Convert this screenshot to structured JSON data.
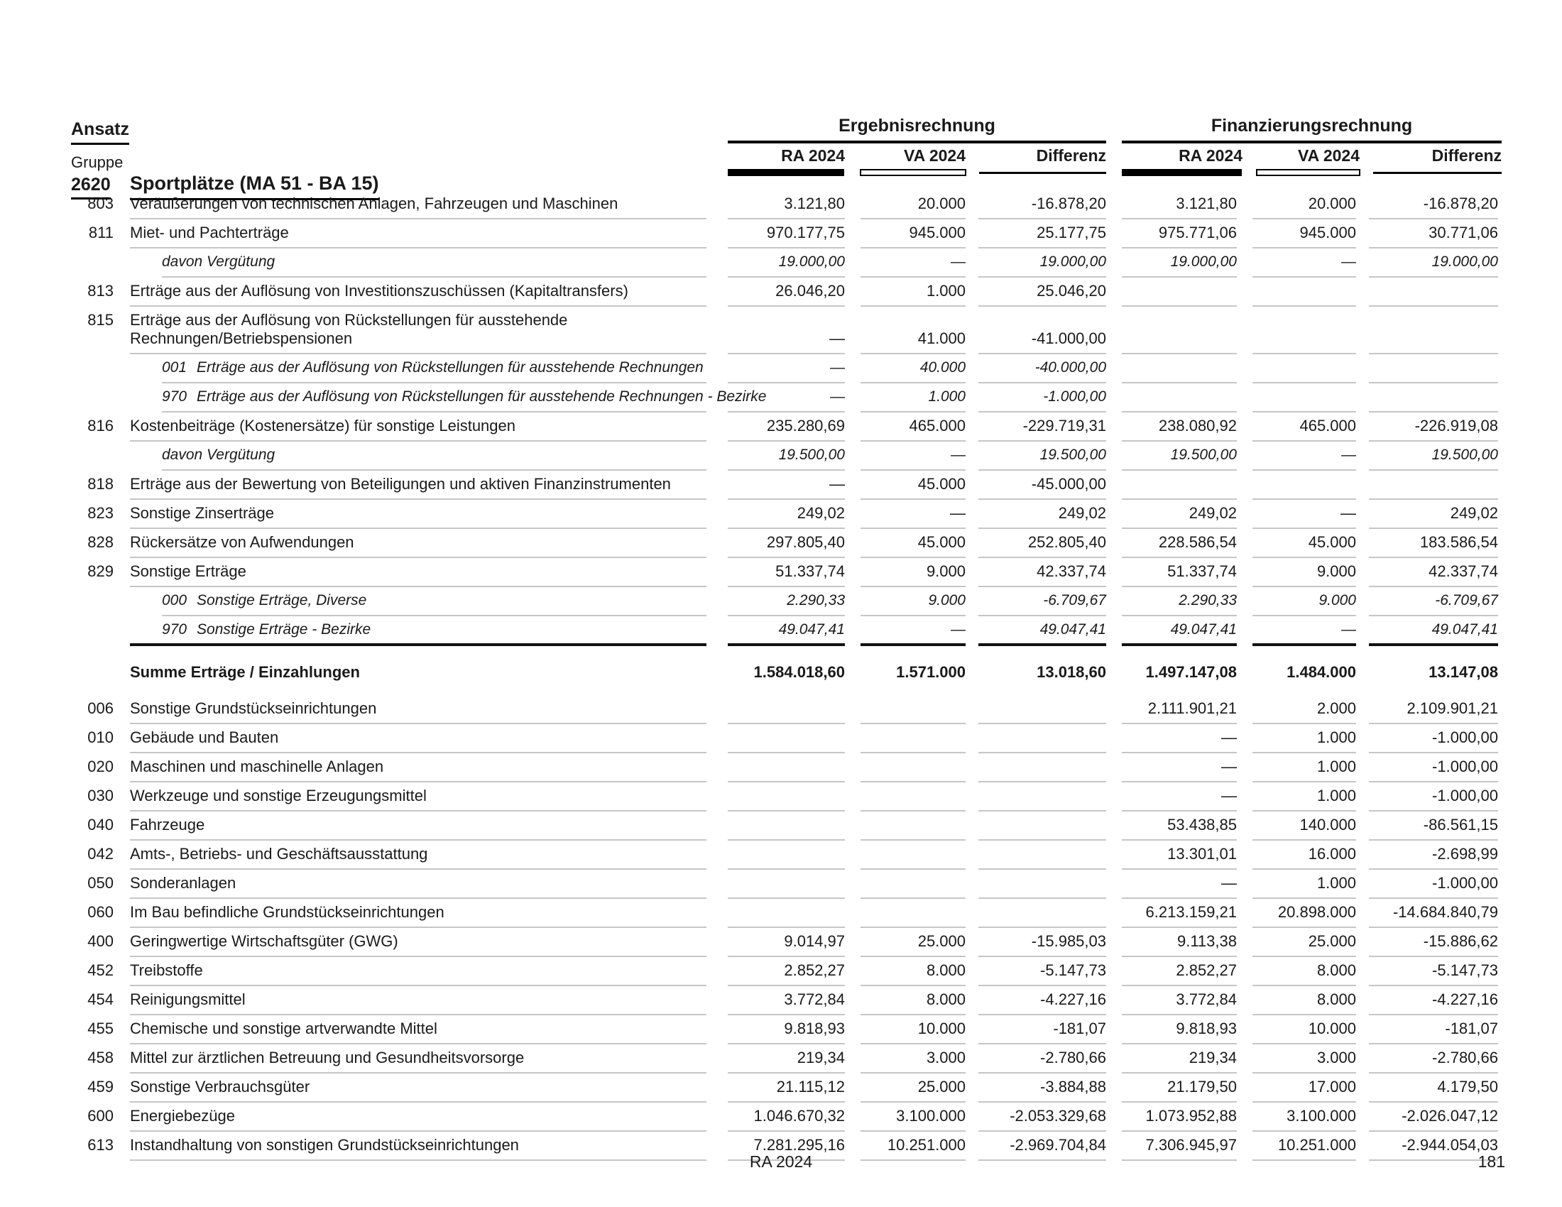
{
  "header": {
    "ansatz": "Ansatz",
    "gruppe_label": "Gruppe",
    "gruppe_code": "2620",
    "gruppe_title": "Sportplätze (MA 51 - BA 15)"
  },
  "columns": {
    "groups": [
      {
        "title": "Ergebnisrechnung",
        "sub": [
          "RA 2024",
          "VA 2024",
          "Differenz"
        ]
      },
      {
        "title": "Finanzierungsrechnung",
        "sub": [
          "RA 2024",
          "VA 2024",
          "Differenz"
        ]
      }
    ],
    "legend": {
      "ra": "solid-black-bar",
      "va": "hollow-bar",
      "differenz": "thin-line"
    }
  },
  "rows": [
    {
      "type": "main",
      "code": "803",
      "label": "Veräußerungen von technischen Anlagen, Fahrzeugen und Maschinen",
      "values": [
        "3.121,80",
        "20.000",
        "-16.878,20",
        "3.121,80",
        "20.000",
        "-16.878,20"
      ]
    },
    {
      "type": "main",
      "code": "811",
      "label": "Miet- und Pachterträge",
      "values": [
        "970.177,75",
        "945.000",
        "25.177,75",
        "975.771,06",
        "945.000",
        "30.771,06"
      ]
    },
    {
      "type": "sub",
      "subcode": "",
      "label": "davon Vergütung",
      "values": [
        "19.000,00",
        "—",
        "19.000,00",
        "19.000,00",
        "—",
        "19.000,00"
      ]
    },
    {
      "type": "main",
      "code": "813",
      "label": "Erträge aus der Auflösung von Investitionszuschüssen (Kapitaltransfers)",
      "values": [
        "26.046,20",
        "1.000",
        "25.046,20",
        "",
        "",
        ""
      ]
    },
    {
      "type": "main",
      "code": "815",
      "label": "Erträge aus der Auflösung von Rückstellungen für ausstehende",
      "label2": "Rechnungen/Betriebspensionen",
      "values": [
        "—",
        "41.000",
        "-41.000,00",
        "",
        "",
        ""
      ]
    },
    {
      "type": "sub",
      "subcode": "001",
      "label": "Erträge aus der Auflösung von Rückstellungen für ausstehende Rechnungen",
      "values": [
        "—",
        "40.000",
        "-40.000,00",
        "",
        "",
        ""
      ]
    },
    {
      "type": "sub",
      "subcode": "970",
      "label": "Erträge aus der Auflösung von Rückstellungen für ausstehende Rechnungen - Bezirke",
      "values": [
        "—",
        "1.000",
        "-1.000,00",
        "",
        "",
        ""
      ]
    },
    {
      "type": "main",
      "code": "816",
      "label": "Kostenbeiträge (Kostenersätze) für sonstige Leistungen",
      "values": [
        "235.280,69",
        "465.000",
        "-229.719,31",
        "238.080,92",
        "465.000",
        "-226.919,08"
      ]
    },
    {
      "type": "sub",
      "subcode": "",
      "label": "davon Vergütung",
      "values": [
        "19.500,00",
        "—",
        "19.500,00",
        "19.500,00",
        "—",
        "19.500,00"
      ]
    },
    {
      "type": "main",
      "code": "818",
      "label": "Erträge aus der Bewertung von Beteiligungen und aktiven Finanzinstrumenten",
      "values": [
        "—",
        "45.000",
        "-45.000,00",
        "",
        "",
        ""
      ]
    },
    {
      "type": "main",
      "code": "823",
      "label": "Sonstige Zinserträge",
      "values": [
        "249,02",
        "—",
        "249,02",
        "249,02",
        "—",
        "249,02"
      ]
    },
    {
      "type": "main",
      "code": "828",
      "label": "Rückersätze von Aufwendungen",
      "values": [
        "297.805,40",
        "45.000",
        "252.805,40",
        "228.586,54",
        "45.000",
        "183.586,54"
      ]
    },
    {
      "type": "main",
      "code": "829",
      "label": "Sonstige Erträge",
      "values": [
        "51.337,74",
        "9.000",
        "42.337,74",
        "51.337,74",
        "9.000",
        "42.337,74"
      ]
    },
    {
      "type": "sub",
      "subcode": "000",
      "label": "Sonstige Erträge, Diverse",
      "values": [
        "2.290,33",
        "9.000",
        "-6.709,67",
        "2.290,33",
        "9.000",
        "-6.709,67"
      ]
    },
    {
      "type": "sub",
      "subcode": "970",
      "label": "Sonstige Erträge - Bezirke",
      "sep": true,
      "values": [
        "49.047,41",
        "—",
        "49.047,41",
        "49.047,41",
        "—",
        "49.047,41"
      ]
    },
    {
      "type": "total",
      "code": "",
      "label": "Summe Erträge / Einzahlungen",
      "values": [
        "1.584.018,60",
        "1.571.000",
        "13.018,60",
        "1.497.147,08",
        "1.484.000",
        "13.147,08"
      ]
    },
    {
      "type": "main",
      "code": "006",
      "label": "Sonstige Grundstückseinrichtungen",
      "values": [
        "",
        "",
        "",
        "2.111.901,21",
        "2.000",
        "2.109.901,21"
      ]
    },
    {
      "type": "main",
      "code": "010",
      "label": "Gebäude und Bauten",
      "values": [
        "",
        "",
        "",
        "—",
        "1.000",
        "-1.000,00"
      ]
    },
    {
      "type": "main",
      "code": "020",
      "label": "Maschinen und maschinelle Anlagen",
      "values": [
        "",
        "",
        "",
        "—",
        "1.000",
        "-1.000,00"
      ]
    },
    {
      "type": "main",
      "code": "030",
      "label": "Werkzeuge und sonstige Erzeugungsmittel",
      "values": [
        "",
        "",
        "",
        "—",
        "1.000",
        "-1.000,00"
      ]
    },
    {
      "type": "main",
      "code": "040",
      "label": "Fahrzeuge",
      "values": [
        "",
        "",
        "",
        "53.438,85",
        "140.000",
        "-86.561,15"
      ]
    },
    {
      "type": "main",
      "code": "042",
      "label": "Amts-, Betriebs- und Geschäftsausstattung",
      "values": [
        "",
        "",
        "",
        "13.301,01",
        "16.000",
        "-2.698,99"
      ]
    },
    {
      "type": "main",
      "code": "050",
      "label": "Sonderanlagen",
      "values": [
        "",
        "",
        "",
        "—",
        "1.000",
        "-1.000,00"
      ]
    },
    {
      "type": "main",
      "code": "060",
      "label": "Im Bau befindliche Grundstückseinrichtungen",
      "values": [
        "",
        "",
        "",
        "6.213.159,21",
        "20.898.000",
        "-14.684.840,79"
      ]
    },
    {
      "type": "main",
      "code": "400",
      "label": "Geringwertige Wirtschaftsgüter (GWG)",
      "values": [
        "9.014,97",
        "25.000",
        "-15.985,03",
        "9.113,38",
        "25.000",
        "-15.886,62"
      ]
    },
    {
      "type": "main",
      "code": "452",
      "label": "Treibstoffe",
      "values": [
        "2.852,27",
        "8.000",
        "-5.147,73",
        "2.852,27",
        "8.000",
        "-5.147,73"
      ]
    },
    {
      "type": "main",
      "code": "454",
      "label": "Reinigungsmittel",
      "values": [
        "3.772,84",
        "8.000",
        "-4.227,16",
        "3.772,84",
        "8.000",
        "-4.227,16"
      ]
    },
    {
      "type": "main",
      "code": "455",
      "label": "Chemische und sonstige artverwandte Mittel",
      "values": [
        "9.818,93",
        "10.000",
        "-181,07",
        "9.818,93",
        "10.000",
        "-181,07"
      ]
    },
    {
      "type": "main",
      "code": "458",
      "label": "Mittel zur ärztlichen Betreuung und Gesundheitsvorsorge",
      "values": [
        "219,34",
        "3.000",
        "-2.780,66",
        "219,34",
        "3.000",
        "-2.780,66"
      ]
    },
    {
      "type": "main",
      "code": "459",
      "label": "Sonstige Verbrauchsgüter",
      "values": [
        "21.115,12",
        "25.000",
        "-3.884,88",
        "21.179,50",
        "17.000",
        "4.179,50"
      ]
    },
    {
      "type": "main",
      "code": "600",
      "label": "Energiebezüge",
      "values": [
        "1.046.670,32",
        "3.100.000",
        "-2.053.329,68",
        "1.073.952,88",
        "3.100.000",
        "-2.026.047,12"
      ]
    },
    {
      "type": "main",
      "code": "613",
      "label": "Instandhaltung von sonstigen Grundstückseinrichtungen",
      "values": [
        "7.281.295,16",
        "10.251.000",
        "-2.969.704,84",
        "7.306.945,97",
        "10.251.000",
        "-2.944.054,03"
      ]
    }
  ],
  "footer": {
    "center": "RA 2024",
    "page": "181"
  },
  "colors": {
    "text": "#1a1a1a",
    "row_line": "#c6c6c6",
    "rule": "#000000"
  }
}
